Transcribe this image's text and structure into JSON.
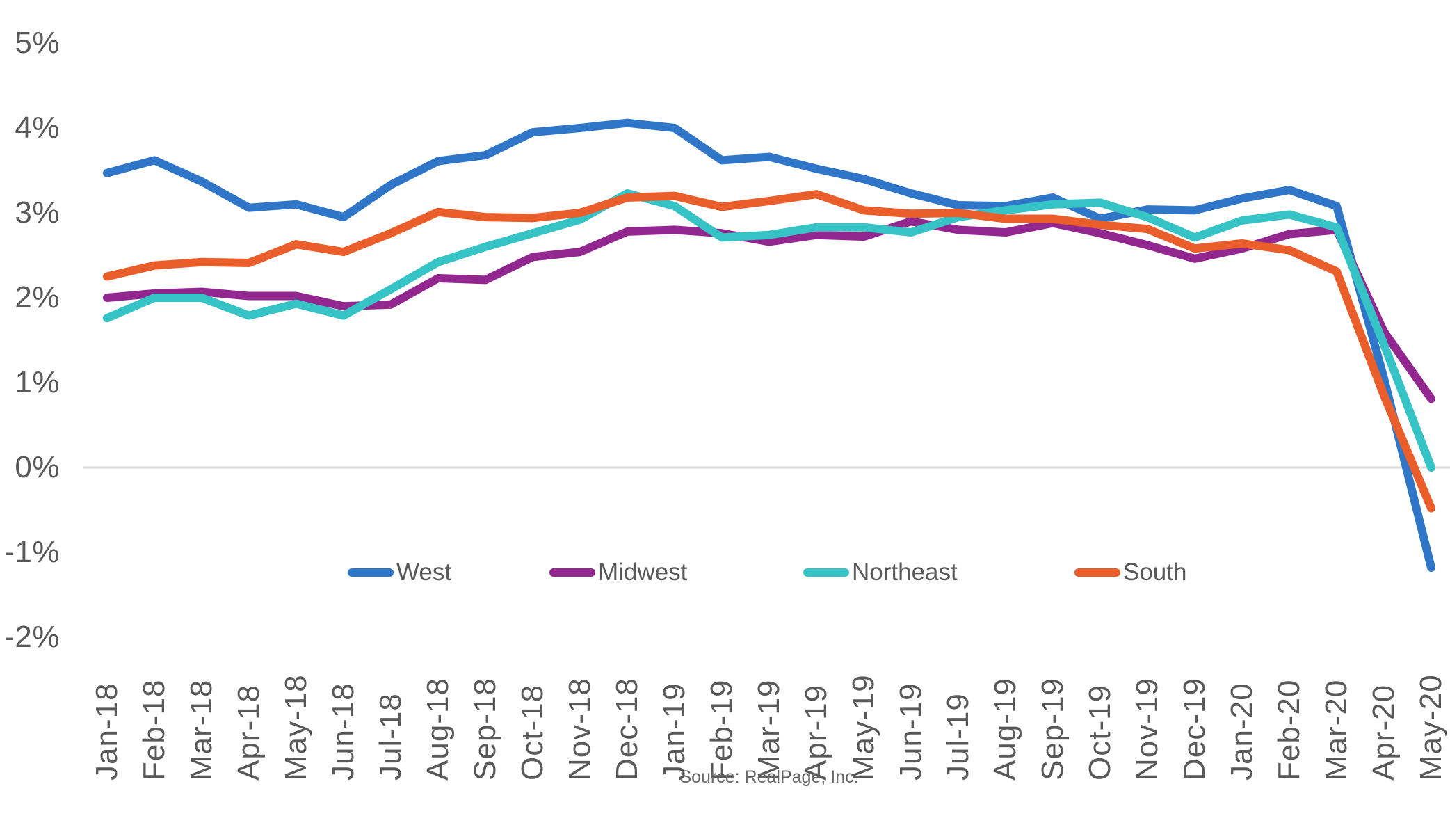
{
  "chart_data": {
    "type": "line",
    "title": "",
    "xlabel": "",
    "ylabel": "",
    "categories": [
      "Jan-18",
      "Feb-18",
      "Mar-18",
      "Apr-18",
      "May-18",
      "Jun-18",
      "Jul-18",
      "Aug-18",
      "Sep-18",
      "Oct-18",
      "Nov-18",
      "Dec-18",
      "Jan-19",
      "Feb-19",
      "Mar-19",
      "Apr-19",
      "May-19",
      "Jun-19",
      "Jul-19",
      "Aug-19",
      "Sep-19",
      "Oct-19",
      "Nov-19",
      "Dec-19",
      "Jan-20",
      "Feb-20",
      "Mar-20",
      "Apr-20",
      "May-20"
    ],
    "series": [
      {
        "name": "West",
        "color": "#2F76C8",
        "values": [
          3.47,
          3.62,
          3.37,
          3.06,
          3.1,
          2.95,
          3.33,
          3.61,
          3.68,
          3.95,
          4.0,
          4.06,
          4.0,
          3.62,
          3.66,
          3.52,
          3.4,
          3.23,
          3.09,
          3.08,
          3.18,
          2.93,
          3.04,
          3.03,
          3.17,
          3.27,
          3.08,
          1.05,
          -1.18
        ]
      },
      {
        "name": "Midwest",
        "color": "#92288F",
        "values": [
          2.0,
          2.05,
          2.07,
          2.02,
          2.02,
          1.9,
          1.92,
          2.23,
          2.21,
          2.48,
          2.54,
          2.78,
          2.8,
          2.76,
          2.66,
          2.74,
          2.72,
          2.9,
          2.8,
          2.77,
          2.88,
          2.76,
          2.62,
          2.46,
          2.58,
          2.75,
          2.8,
          1.6,
          0.81
        ]
      },
      {
        "name": "Northeast",
        "color": "#36C3C5",
        "values": [
          1.76,
          2.0,
          2.0,
          1.79,
          1.93,
          1.79,
          2.1,
          2.42,
          2.6,
          2.76,
          2.92,
          3.23,
          3.08,
          2.71,
          2.74,
          2.83,
          2.83,
          2.77,
          2.95,
          3.03,
          3.1,
          3.12,
          2.95,
          2.71,
          2.91,
          2.98,
          2.83,
          1.45,
          0.0
        ]
      },
      {
        "name": "South",
        "color": "#E95E2B",
        "values": [
          2.25,
          2.38,
          2.42,
          2.41,
          2.63,
          2.54,
          2.76,
          3.01,
          2.95,
          2.94,
          3.0,
          3.18,
          3.2,
          3.07,
          3.14,
          3.22,
          3.03,
          2.99,
          3.0,
          2.93,
          2.93,
          2.86,
          2.81,
          2.58,
          2.64,
          2.56,
          2.31,
          0.85,
          -0.48
        ]
      }
    ],
    "y_ticks": [
      "5%",
      "4%",
      "3%",
      "2%",
      "1%",
      "0%",
      "-1%",
      "-2%"
    ],
    "ylim": [
      -2,
      5
    ],
    "grid": "zero-line-only",
    "legend_position": "inside-bottom-center"
  },
  "legend": {
    "items": [
      "West",
      "Midwest",
      "Northeast",
      "South"
    ]
  },
  "source": {
    "text": "Source: RealPage, Inc."
  },
  "colors": {
    "axis_text": "#595959",
    "source_text": "#666666",
    "zero_gridline": "#D9D9D9",
    "background": "#FFFFFF"
  }
}
